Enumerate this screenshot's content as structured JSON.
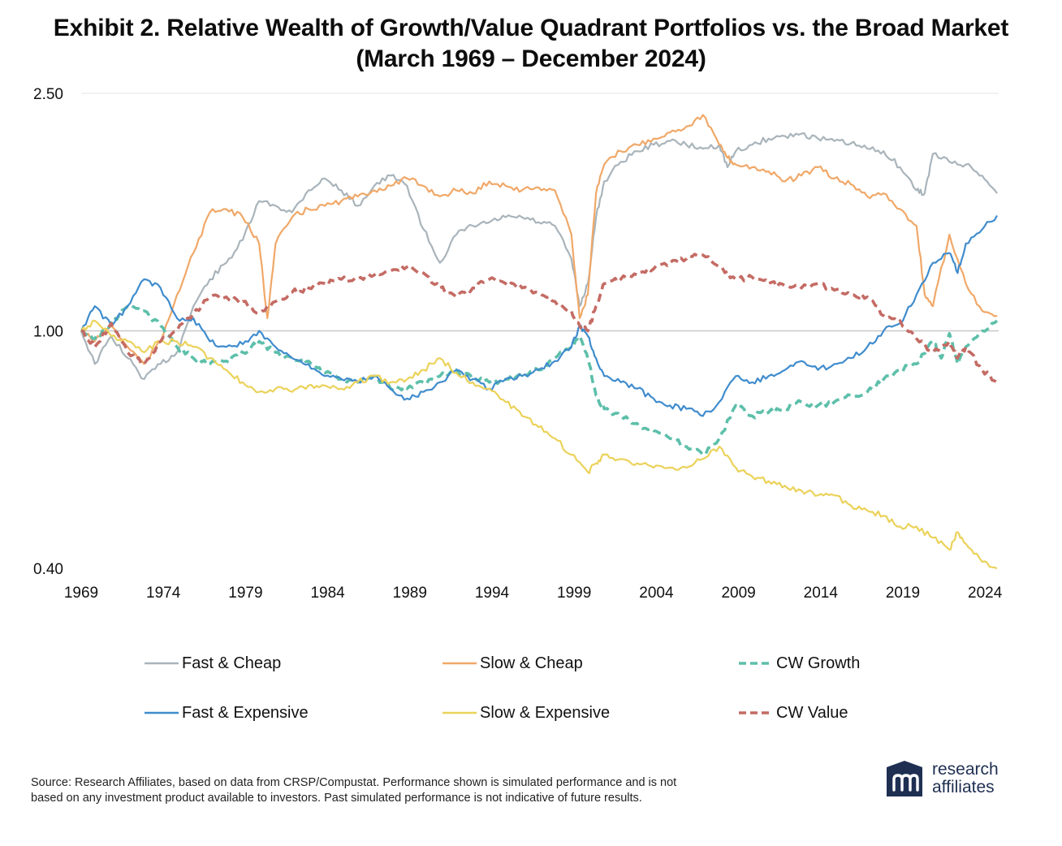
{
  "title": {
    "line1": "Exhibit 2. Relative Wealth of Growth/Value Quadrant Portfolios vs. the Broad Market",
    "line2": "(March 1969 – December 2024)"
  },
  "footnote": {
    "line1": "Source: Research Affiliates, based on data from CRSP/Compustat. Performance shown is simulated performance and is not",
    "line2": "based on any investment product available to investors. Past simulated performance is not indicative of future results."
  },
  "logo": {
    "line1": "research",
    "line2": "affiliates",
    "brand_color": "#1f2f52"
  },
  "chart_data": {
    "type": "line",
    "title": "Exhibit 2. Relative Wealth of Growth/Value Quadrant Portfolios vs. the Broad Market (March 1969 – December 2024)",
    "xlabel": "",
    "ylabel": "",
    "y_scale": "log",
    "ylim": [
      0.4,
      2.5
    ],
    "xlim": [
      1969.17,
      2025.0
    ],
    "y_ticks": [
      2.5,
      1.0,
      0.4
    ],
    "y_tick_labels": [
      "2.50",
      "1.00",
      "0.40"
    ],
    "x_ticks": [
      1969,
      1974,
      1979,
      1984,
      1989,
      1994,
      1999,
      2004,
      2009,
      2014,
      2019,
      2024
    ],
    "x_tick_labels": [
      "1969",
      "1974",
      "1979",
      "1984",
      "1989",
      "1994",
      "1999",
      "2004",
      "2009",
      "2014",
      "2019",
      "2024"
    ],
    "reference_line": 1.0,
    "grid": "horizontal at 2.50 and 1.00",
    "legend_position": "bottom",
    "series": [
      {
        "name": "Fast & Cheap",
        "color": "#a9b4bb",
        "style": "solid",
        "x": [
          1969.17,
          1970,
          1971,
          1972,
          1973,
          1974,
          1975,
          1976,
          1977,
          1978,
          1979,
          1980,
          1981,
          1982,
          1983,
          1984,
          1985,
          1986,
          1987,
          1988,
          1989,
          1990,
          1991,
          1992,
          1993,
          1994,
          1995,
          1996,
          1997,
          1998,
          1999,
          1999.5,
          2000,
          2000.5,
          2001,
          2002,
          2003,
          2004,
          2005,
          2006,
          2007,
          2008,
          2008.5,
          2009,
          2010,
          2011,
          2012,
          2013,
          2014,
          2015,
          2016,
          2017,
          2018,
          2019,
          2020,
          2020.5,
          2021,
          2022,
          2023,
          2024,
          2024.9
        ],
        "values": [
          1.0,
          0.88,
          0.98,
          0.9,
          0.83,
          0.88,
          0.92,
          1.1,
          1.22,
          1.3,
          1.42,
          1.65,
          1.62,
          1.58,
          1.72,
          1.8,
          1.72,
          1.62,
          1.75,
          1.82,
          1.75,
          1.48,
          1.3,
          1.45,
          1.5,
          1.52,
          1.55,
          1.55,
          1.52,
          1.5,
          1.32,
          1.1,
          1.2,
          1.55,
          1.78,
          1.92,
          2.0,
          2.05,
          2.08,
          2.05,
          2.02,
          2.05,
          1.88,
          2.0,
          2.05,
          2.1,
          2.12,
          2.14,
          2.1,
          2.08,
          2.06,
          2.02,
          2.0,
          1.88,
          1.72,
          1.7,
          1.98,
          1.92,
          1.9,
          1.82,
          1.7
        ]
      },
      {
        "name": "Slow & Cheap",
        "color": "#f0a868",
        "style": "solid",
        "x": [
          1969.17,
          1970,
          1971,
          1972,
          1973,
          1974,
          1975,
          1976,
          1977,
          1978,
          1979,
          1980,
          1980.5,
          1981,
          1982,
          1983,
          1984,
          1985,
          1986,
          1987,
          1988,
          1989,
          1990,
          1991,
          1992,
          1993,
          1994,
          1995,
          1996,
          1997,
          1998,
          1999,
          1999.5,
          2000,
          2000.5,
          2001,
          2002,
          2003,
          2004,
          2005,
          2006,
          2007,
          2008,
          2008.5,
          2009,
          2010,
          2011,
          2012,
          2013,
          2014,
          2015,
          2016,
          2017,
          2018,
          2019,
          2020,
          2020.5,
          2021,
          2022,
          2023,
          2024,
          2024.9
        ],
        "values": [
          1.0,
          0.96,
          1.02,
          0.94,
          0.88,
          0.96,
          1.15,
          1.35,
          1.58,
          1.6,
          1.55,
          1.4,
          1.05,
          1.4,
          1.55,
          1.6,
          1.62,
          1.65,
          1.68,
          1.72,
          1.75,
          1.8,
          1.75,
          1.68,
          1.72,
          1.7,
          1.78,
          1.75,
          1.72,
          1.74,
          1.72,
          1.45,
          1.05,
          1.15,
          1.7,
          1.9,
          2.0,
          2.05,
          2.1,
          2.15,
          2.2,
          2.3,
          2.05,
          1.95,
          1.9,
          1.88,
          1.85,
          1.78,
          1.82,
          1.88,
          1.8,
          1.76,
          1.68,
          1.7,
          1.6,
          1.5,
          1.15,
          1.1,
          1.45,
          1.2,
          1.08,
          1.06
        ]
      },
      {
        "name": "CW Growth",
        "color": "#5dbfaa",
        "style": "dashed",
        "x": [
          1969.17,
          1970,
          1971,
          1972,
          1973,
          1974,
          1975,
          1976,
          1977,
          1978,
          1979,
          1980,
          1981,
          1982,
          1983,
          1984,
          1985,
          1986,
          1987,
          1988,
          1989,
          1990,
          1991,
          1992,
          1993,
          1994,
          1995,
          1996,
          1997,
          1998,
          1999,
          1999.5,
          2000,
          2000.5,
          2001,
          2002,
          2003,
          2004,
          2005,
          2006,
          2007,
          2008,
          2009,
          2010,
          2011,
          2012,
          2013,
          2014,
          2015,
          2016,
          2017,
          2018,
          2019,
          2020,
          2021,
          2021.5,
          2022,
          2022.5,
          2023,
          2024,
          2024.9
        ],
        "values": [
          1.0,
          0.97,
          1.03,
          1.1,
          1.08,
          1.02,
          0.94,
          0.9,
          0.88,
          0.89,
          0.92,
          0.96,
          0.92,
          0.9,
          0.89,
          0.85,
          0.83,
          0.82,
          0.84,
          0.8,
          0.8,
          0.82,
          0.84,
          0.86,
          0.83,
          0.82,
          0.83,
          0.84,
          0.86,
          0.9,
          0.94,
          0.98,
          0.9,
          0.78,
          0.74,
          0.72,
          0.7,
          0.68,
          0.66,
          0.64,
          0.62,
          0.66,
          0.75,
          0.72,
          0.73,
          0.74,
          0.76,
          0.75,
          0.76,
          0.78,
          0.79,
          0.83,
          0.86,
          0.88,
          0.96,
          0.9,
          0.99,
          0.88,
          0.94,
          1.0,
          1.04
        ]
      },
      {
        "name": "Fast & Expensive",
        "color": "#3f8ccd",
        "style": "solid",
        "x": [
          1969.17,
          1970,
          1971,
          1972,
          1973,
          1974,
          1975,
          1976,
          1977,
          1978,
          1979,
          1980,
          1981,
          1982,
          1983,
          1984,
          1985,
          1986,
          1987,
          1988,
          1989,
          1990,
          1991,
          1992,
          1993,
          1994,
          1995,
          1996,
          1997,
          1998,
          1999,
          1999.5,
          2000,
          2000.5,
          2001,
          2002,
          2003,
          2004,
          2005,
          2006,
          2007,
          2008,
          2009,
          2010,
          2011,
          2012,
          2013,
          2014,
          2015,
          2016,
          2017,
          2018,
          2019,
          2020,
          2021,
          2022,
          2022.5,
          2023,
          2024,
          2024.9
        ],
        "values": [
          1.0,
          1.1,
          1.02,
          1.1,
          1.22,
          1.18,
          1.05,
          1.05,
          0.96,
          0.94,
          0.95,
          1.0,
          0.94,
          0.9,
          0.88,
          0.84,
          0.83,
          0.82,
          0.84,
          0.8,
          0.77,
          0.79,
          0.82,
          0.86,
          0.83,
          0.8,
          0.83,
          0.84,
          0.86,
          0.89,
          0.94,
          1.02,
          0.98,
          0.9,
          0.84,
          0.82,
          0.8,
          0.77,
          0.75,
          0.74,
          0.72,
          0.76,
          0.84,
          0.82,
          0.84,
          0.86,
          0.89,
          0.86,
          0.88,
          0.9,
          0.94,
          1.0,
          1.03,
          1.15,
          1.3,
          1.35,
          1.25,
          1.4,
          1.48,
          1.56
        ]
      },
      {
        "name": "Slow & Expensive",
        "color": "#ebd25a",
        "style": "solid",
        "x": [
          1969.17,
          1970,
          1971,
          1972,
          1973,
          1974,
          1975,
          1976,
          1977,
          1978,
          1979,
          1980,
          1981,
          1982,
          1983,
          1984,
          1985,
          1986,
          1987,
          1988,
          1989,
          1990,
          1991,
          1992,
          1993,
          1994,
          1995,
          1996,
          1997,
          1998,
          1999,
          2000,
          2000.5,
          2001,
          2002,
          2003,
          2004,
          2005,
          2006,
          2007,
          2008,
          2009,
          2010,
          2011,
          2012,
          2013,
          2014,
          2015,
          2016,
          2017,
          2018,
          2019,
          2020,
          2021,
          2022,
          2022.5,
          2023,
          2024,
          2024.9
        ],
        "values": [
          1.0,
          1.04,
          0.98,
          0.96,
          0.92,
          0.96,
          0.96,
          0.94,
          0.9,
          0.86,
          0.82,
          0.79,
          0.8,
          0.79,
          0.81,
          0.81,
          0.8,
          0.82,
          0.84,
          0.82,
          0.83,
          0.86,
          0.9,
          0.85,
          0.82,
          0.8,
          0.76,
          0.72,
          0.69,
          0.66,
          0.62,
          0.58,
          0.6,
          0.62,
          0.61,
          0.6,
          0.59,
          0.59,
          0.59,
          0.61,
          0.64,
          0.59,
          0.57,
          0.56,
          0.55,
          0.54,
          0.53,
          0.53,
          0.51,
          0.5,
          0.49,
          0.47,
          0.47,
          0.45,
          0.43,
          0.46,
          0.44,
          0.41,
          0.4
        ]
      },
      {
        "name": "CW Value",
        "color": "#c46b64",
        "style": "dashed",
        "x": [
          1969.17,
          1970,
          1971,
          1972,
          1973,
          1974,
          1975,
          1976,
          1977,
          1978,
          1979,
          1980,
          1981,
          1982,
          1983,
          1984,
          1985,
          1986,
          1987,
          1988,
          1989,
          1990,
          1991,
          1992,
          1993,
          1994,
          1995,
          1996,
          1997,
          1998,
          1999,
          1999.5,
          2000,
          2000.5,
          2001,
          2002,
          2003,
          2004,
          2005,
          2006,
          2007,
          2008,
          2009,
          2010,
          2011,
          2012,
          2013,
          2014,
          2015,
          2016,
          2017,
          2018,
          2019,
          2020,
          2021,
          2022,
          2022.5,
          2023,
          2024,
          2024.9
        ],
        "values": [
          1.0,
          0.94,
          1.03,
          0.92,
          0.88,
          0.96,
          1.0,
          1.07,
          1.14,
          1.14,
          1.12,
          1.07,
          1.12,
          1.16,
          1.18,
          1.2,
          1.22,
          1.22,
          1.24,
          1.26,
          1.28,
          1.25,
          1.18,
          1.14,
          1.18,
          1.22,
          1.2,
          1.18,
          1.16,
          1.12,
          1.08,
          1.02,
          1.0,
          1.1,
          1.2,
          1.22,
          1.24,
          1.27,
          1.3,
          1.32,
          1.34,
          1.28,
          1.22,
          1.23,
          1.2,
          1.19,
          1.18,
          1.2,
          1.17,
          1.15,
          1.14,
          1.06,
          1.04,
          0.97,
          0.92,
          0.96,
          0.9,
          0.94,
          0.86,
          0.82
        ]
      }
    ]
  }
}
